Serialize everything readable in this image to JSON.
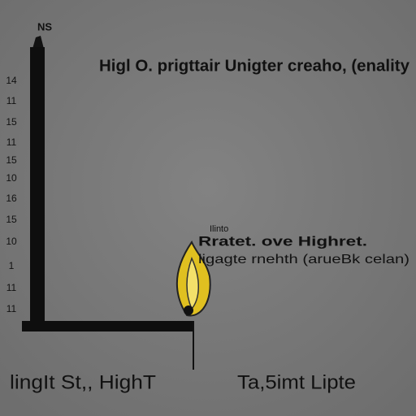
{
  "header": {
    "top_label": "NS",
    "title": "Higl O. prigttair Unigter creaho, (enality"
  },
  "axis_labels": [
    "14",
    "11",
    "15",
    "11",
    "15",
    "10",
    "16",
    "15",
    "10",
    "1",
    "11",
    "11"
  ],
  "callout": {
    "small": "Ilinto",
    "title": "Rratet. ove Highret.",
    "subtitle": "ligagte rnehth (arueBk celan)"
  },
  "footer": {
    "left": "lingIt St,, HighT",
    "right": "Ta,5imt Lipte"
  }
}
